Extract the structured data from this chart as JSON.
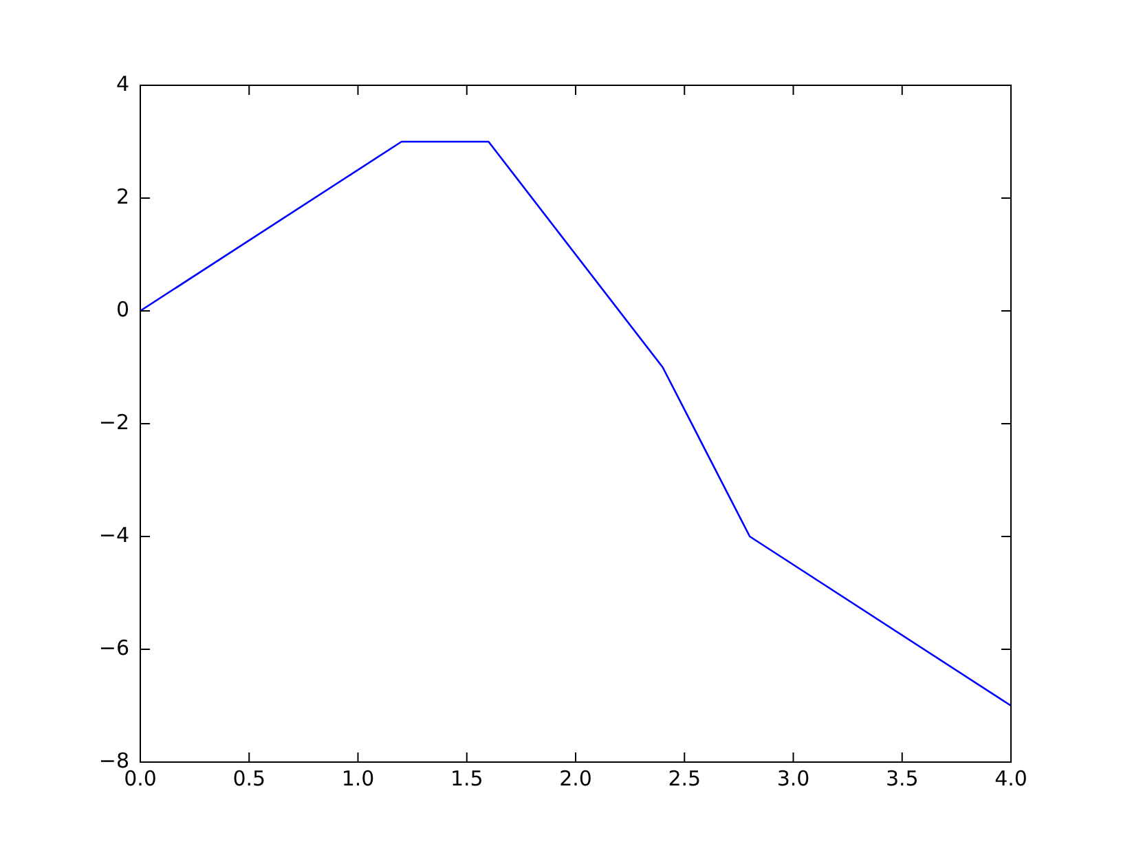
{
  "chart_data": {
    "type": "line",
    "x": [
      0,
      1.2,
      1.6,
      2.4,
      2.8,
      4
    ],
    "series": [
      {
        "color": "#0000ff",
        "values": [
          0,
          3,
          3,
          -1,
          -4,
          -7
        ]
      }
    ],
    "xlim": [
      0,
      4
    ],
    "xticks": [
      {
        "value": 0,
        "label": "0.0"
      },
      {
        "value": 0.5,
        "label": "0.5"
      },
      {
        "value": 1,
        "label": "1.0"
      },
      {
        "value": 1.5,
        "label": "1.5"
      },
      {
        "value": 2,
        "label": "2.0"
      },
      {
        "value": 2.5,
        "label": "2.5"
      },
      {
        "value": 3,
        "label": "3.0"
      },
      {
        "value": 3.5,
        "label": "3.5"
      },
      {
        "value": 4,
        "label": "4.0"
      }
    ],
    "ylim": [
      -8,
      4
    ],
    "yticks": [
      {
        "value": -8,
        "label": "−8"
      },
      {
        "value": -6,
        "label": "−6"
      },
      {
        "value": -4,
        "label": "−4"
      },
      {
        "value": -2,
        "label": "−2"
      },
      {
        "value": 0,
        "label": "0"
      },
      {
        "value": 2,
        "label": "2"
      },
      {
        "value": 4,
        "label": "4"
      }
    ],
    "grid": false,
    "legend": false,
    "marker": "none",
    "line_style": "solid"
  }
}
